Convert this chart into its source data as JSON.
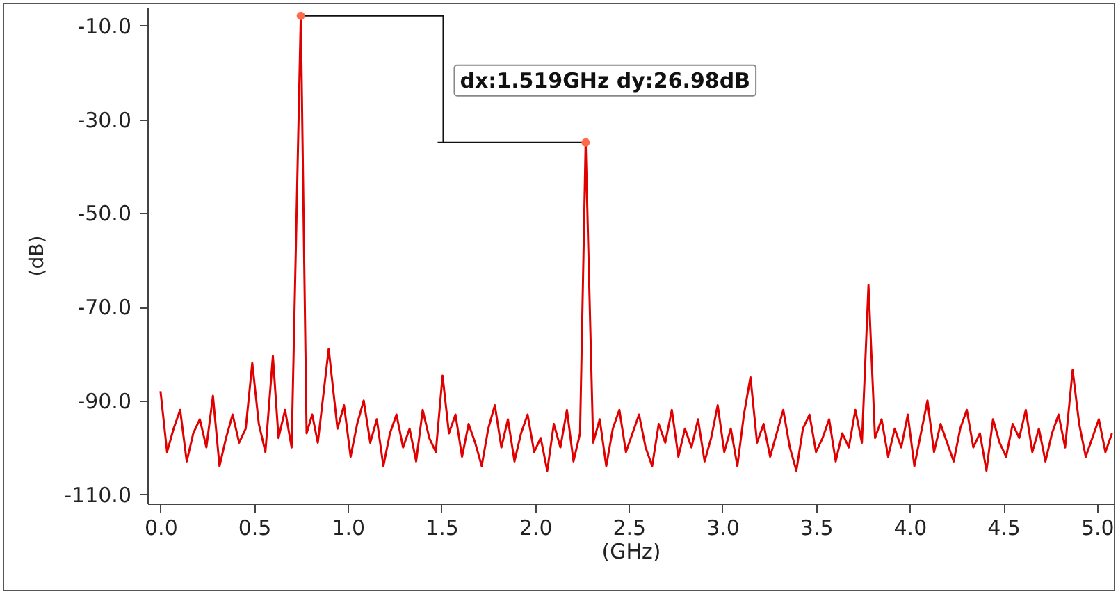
{
  "chart_data": {
    "type": "line",
    "xlabel": "(GHz)",
    "ylabel": "(dB)",
    "xlim": [
      -0.07,
      5.09
    ],
    "ylim": [
      -112,
      -6
    ],
    "xticks": [
      {
        "value": 0,
        "label": "0.0"
      },
      {
        "value": 0.5,
        "label": "0.5"
      },
      {
        "value": 1,
        "label": "1.0"
      },
      {
        "value": 1.5,
        "label": "1.5"
      },
      {
        "value": 2,
        "label": "2.0"
      },
      {
        "value": 2.5,
        "label": "2.5"
      },
      {
        "value": 3,
        "label": "3.0"
      },
      {
        "value": 3.5,
        "label": "3.5"
      },
      {
        "value": 4,
        "label": "4.0"
      },
      {
        "value": 4.5,
        "label": "4.5"
      },
      {
        "value": 5,
        "label": "5.0"
      }
    ],
    "yticks": [
      {
        "value": -110,
        "label": "-110.0"
      },
      {
        "value": -90,
        "label": "-90.0"
      },
      {
        "value": -70,
        "label": "-70.0"
      },
      {
        "value": -50,
        "label": "-50.0"
      },
      {
        "value": -30,
        "label": "-30.0"
      },
      {
        "value": -10,
        "label": "-10.0"
      }
    ],
    "grid": false,
    "annotations": [
      "dx:1.519GHz dy:26.98dB"
    ],
    "series": [
      {
        "color": "#e00000",
        "x": [
          0.0,
          0.035,
          0.07,
          0.105,
          0.14,
          0.175,
          0.21,
          0.245,
          0.28,
          0.315,
          0.35,
          0.385,
          0.42,
          0.455,
          0.49,
          0.525,
          0.56,
          0.6,
          0.63,
          0.665,
          0.7,
          0.749,
          0.78,
          0.81,
          0.84,
          0.898,
          0.945,
          0.98,
          1.015,
          1.05,
          1.085,
          1.12,
          1.155,
          1.19,
          1.225,
          1.26,
          1.295,
          1.33,
          1.365,
          1.4,
          1.435,
          1.47,
          1.506,
          1.54,
          1.575,
          1.61,
          1.645,
          1.68,
          1.715,
          1.75,
          1.785,
          1.82,
          1.855,
          1.89,
          1.925,
          1.96,
          1.995,
          2.03,
          2.065,
          2.1,
          2.135,
          2.17,
          2.205,
          2.24,
          2.27,
          2.31,
          2.345,
          2.38,
          2.415,
          2.45,
          2.485,
          2.52,
          2.555,
          2.59,
          2.625,
          2.66,
          2.695,
          2.73,
          2.765,
          2.8,
          2.835,
          2.87,
          2.905,
          2.94,
          2.975,
          3.01,
          3.045,
          3.08,
          3.115,
          3.15,
          3.185,
          3.22,
          3.255,
          3.29,
          3.325,
          3.36,
          3.395,
          3.43,
          3.465,
          3.5,
          3.535,
          3.57,
          3.605,
          3.64,
          3.675,
          3.71,
          3.745,
          3.78,
          3.815,
          3.85,
          3.885,
          3.92,
          3.955,
          3.99,
          4.025,
          4.06,
          4.095,
          4.13,
          4.165,
          4.2,
          4.235,
          4.27,
          4.305,
          4.34,
          4.375,
          4.41,
          4.445,
          4.48,
          4.515,
          4.55,
          4.585,
          4.62,
          4.655,
          4.69,
          4.725,
          4.76,
          4.795,
          4.83,
          4.87,
          4.905,
          4.94,
          4.975,
          5.01,
          5.045,
          5.08
        ],
        "values": [
          -88,
          -101,
          -96,
          -92,
          -103,
          -97,
          -94,
          -100,
          -89,
          -104,
          -98,
          -93,
          -99,
          -96,
          -82,
          -95,
          -101,
          -80.5,
          -98,
          -92,
          -100,
          -7.9,
          -97,
          -93,
          -99,
          -79,
          -96,
          -91,
          -102,
          -95,
          -90,
          -99,
          -94,
          -104,
          -97,
          -93,
          -100,
          -96,
          -103,
          -92,
          -98,
          -101,
          -84.7,
          -97,
          -93,
          -102,
          -95,
          -99,
          -104,
          -96,
          -91,
          -100,
          -94,
          -103,
          -97,
          -93,
          -101,
          -98,
          -105,
          -95,
          -100,
          -92,
          -103,
          -97,
          -34.9,
          -99,
          -94,
          -104,
          -96,
          -92,
          -101,
          -97,
          -93,
          -100,
          -104,
          -95,
          -99,
          -92,
          -102,
          -96,
          -100,
          -94,
          -103,
          -98,
          -91,
          -101,
          -96,
          -104,
          -93,
          -85,
          -99,
          -95,
          -102,
          -97,
          -92,
          -100,
          -105,
          -96,
          -93,
          -101,
          -98,
          -94,
          -103,
          -97,
          -100,
          -92,
          -99,
          -65.4,
          -98,
          -94,
          -102,
          -96,
          -100,
          -93,
          -104,
          -97,
          -90,
          -101,
          -95,
          -99,
          -103,
          -96,
          -92,
          -100,
          -97,
          -105,
          -94,
          -99,
          -102,
          -95,
          -98,
          -92,
          -101,
          -96,
          -103,
          -97,
          -93,
          -100,
          -83.5,
          -95,
          -102,
          -98,
          -94,
          -101,
          -97
        ]
      }
    ]
  }
}
